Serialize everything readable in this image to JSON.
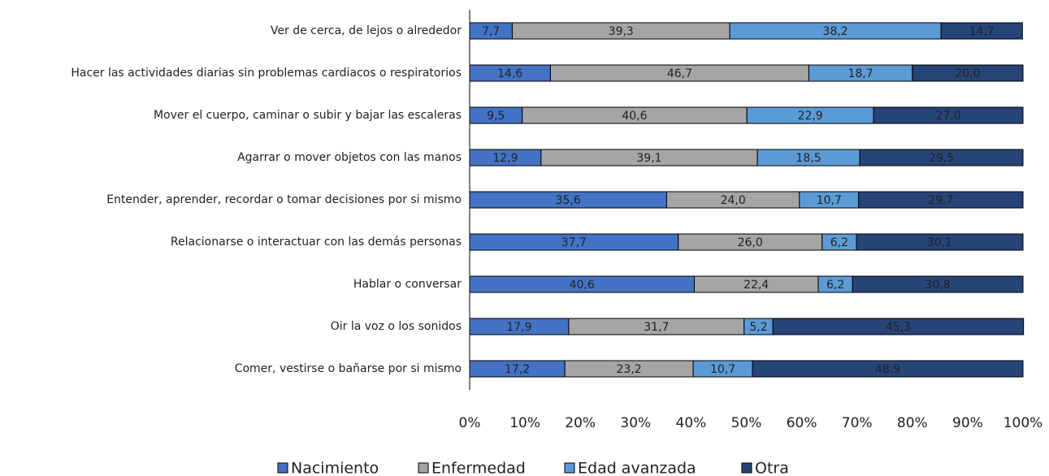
{
  "chart_data": {
    "type": "stacked_barh",
    "categories": [
      "Ver de cerca, de lejos o alrededor",
      "Hacer las actividades diarias sin problemas cardiacos o respiratorios",
      "Mover el cuerpo, caminar o subir y bajar las escaleras",
      "Agarrar o mover objetos con las manos",
      "Entender, aprender, recordar o tomar decisiones por si mismo",
      "Relacionarse o interactuar con las demás personas",
      "Hablar o conversar",
      "Oir la voz o los sonidos",
      "Comer, vestirse o bañarse por si mismo"
    ],
    "series": [
      {
        "name": "Nacimiento",
        "color": "#4472c4",
        "values": [
          7.7,
          14.6,
          9.5,
          12.9,
          35.6,
          37.7,
          40.6,
          17.9,
          17.2
        ],
        "value_labels": [
          "7,7",
          "14,6",
          "9,5",
          "12,9",
          "35,6",
          "37,7",
          "40,6",
          "17,9",
          "17,2"
        ]
      },
      {
        "name": "Enfermedad",
        "color": "#a5a5a5",
        "values": [
          39.3,
          46.7,
          40.6,
          39.1,
          24.0,
          26.0,
          22.4,
          31.7,
          23.2
        ],
        "value_labels": [
          "39,3",
          "46,7",
          "40,6",
          "39,1",
          "24,0",
          "26,0",
          "22,4",
          "31,7",
          "23,2"
        ]
      },
      {
        "name": "Edad avanzada",
        "color": "#5b9bd5",
        "values": [
          38.2,
          18.7,
          22.9,
          18.5,
          10.7,
          6.2,
          6.2,
          5.2,
          10.7
        ],
        "value_labels": [
          "38,2",
          "18,7",
          "22,9",
          "18,5",
          "10,7",
          "6,2",
          "6,2",
          "5,2",
          "10,7"
        ]
      },
      {
        "name": "Otra",
        "color": "#264478",
        "values": [
          14.7,
          20.0,
          27.0,
          29.5,
          29.7,
          30.1,
          30.8,
          45.3,
          48.9
        ],
        "value_labels": [
          "14,7",
          "20,0",
          "27,0",
          "29,5",
          "29,7",
          "30,1",
          "30,8",
          "45,3",
          "48,9"
        ]
      }
    ],
    "xlim": [
      0,
      100
    ],
    "xticks": [
      {
        "value": 0,
        "label": "0%"
      },
      {
        "value": 10,
        "label": "10%"
      },
      {
        "value": 20,
        "label": "20%"
      },
      {
        "value": 30,
        "label": "30%"
      },
      {
        "value": 40,
        "label": "40%"
      },
      {
        "value": 50,
        "label": "50%"
      },
      {
        "value": 60,
        "label": "60%"
      },
      {
        "value": 70,
        "label": "70%"
      },
      {
        "value": 80,
        "label": "80%"
      },
      {
        "value": 90,
        "label": "90%"
      },
      {
        "value": 100,
        "label": "100%"
      }
    ],
    "legend": "bottom"
  }
}
